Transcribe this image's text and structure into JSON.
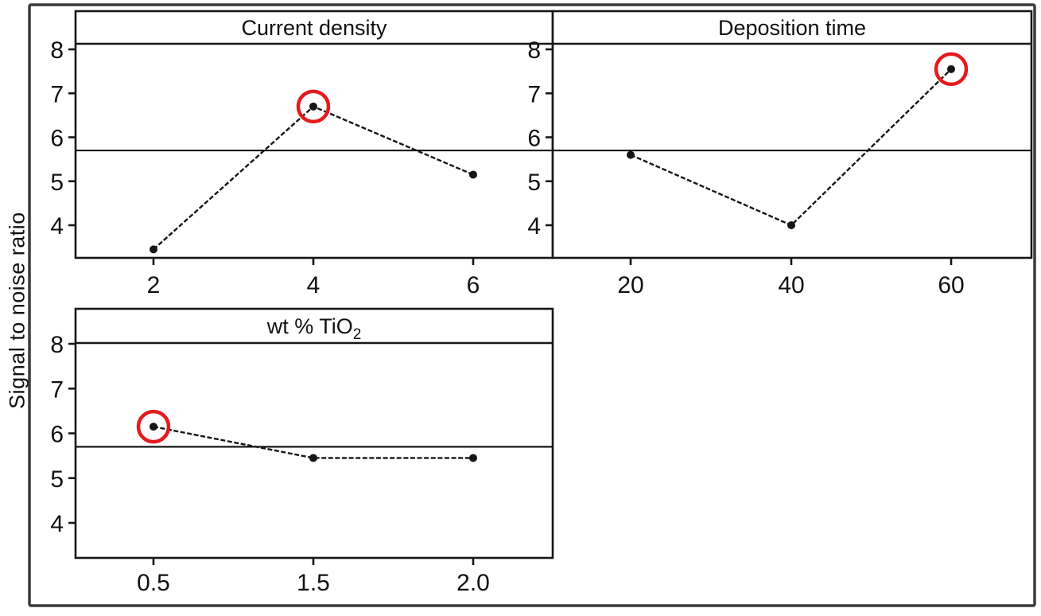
{
  "figure": {
    "ylabel": "Signal to noise ratio",
    "background": "#ffffff",
    "frame_color": "#3a3a3a",
    "line_color": "#161616",
    "text_color": "#111111",
    "highlight_color": "#e41b1e",
    "grand_mean": 5.7
  },
  "chart_data": [
    {
      "type": "line",
      "panel": "top-left",
      "title": "Current density",
      "title_sub": "",
      "categories": [
        "2",
        "4",
        "6"
      ],
      "values": [
        3.45,
        6.7,
        5.15
      ],
      "yticks": [
        8,
        7,
        6,
        5,
        4
      ],
      "ylim": [
        3.25,
        8.15
      ],
      "xlabel": "",
      "ylabel": "Signal to noise ratio",
      "mean_line": 5.7,
      "highlight_index": 1,
      "grid": false,
      "legend": false
    },
    {
      "type": "line",
      "panel": "top-right",
      "title": "Deposition time",
      "title_sub": "",
      "categories": [
        "20",
        "40",
        "60"
      ],
      "values": [
        5.6,
        4.0,
        7.55
      ],
      "yticks": [
        8,
        7,
        6,
        5,
        4
      ],
      "ylim": [
        3.25,
        8.15
      ],
      "xlabel": "",
      "ylabel": "Signal to noise ratio",
      "mean_line": 5.7,
      "highlight_index": 2,
      "grid": false,
      "legend": false
    },
    {
      "type": "line",
      "panel": "bottom-left",
      "title": "wt % TiO",
      "title_sub": "2",
      "categories": [
        "0.5",
        "1.5",
        "2.0"
      ],
      "values": [
        6.15,
        5.45,
        5.45
      ],
      "yticks": [
        8,
        7,
        6,
        5,
        4
      ],
      "ylim": [
        3.2,
        8.0
      ],
      "xlabel": "",
      "ylabel": "Signal to noise ratio",
      "mean_line": 5.7,
      "highlight_index": 0,
      "grid": false,
      "legend": false
    }
  ]
}
